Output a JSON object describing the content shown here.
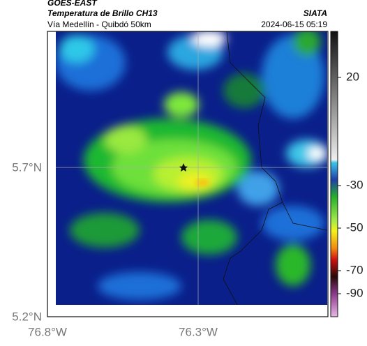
{
  "header": {
    "source": "GOES-EAST",
    "title": "Temperatura de Brillo CH13",
    "subtitle": "Vía Medellín - Quibdó 50km",
    "agency": "SIATA",
    "timestamp": "2024-06-15 05:19"
  },
  "axes": {
    "lat_labels": [
      "5.7°N",
      "5.2°N"
    ],
    "lon_labels": [
      "76.8°W",
      "76.3°W"
    ]
  },
  "colorbar": {
    "tick_labels": [
      "20",
      "-30",
      "-50",
      "-70",
      "-90"
    ]
  }
}
